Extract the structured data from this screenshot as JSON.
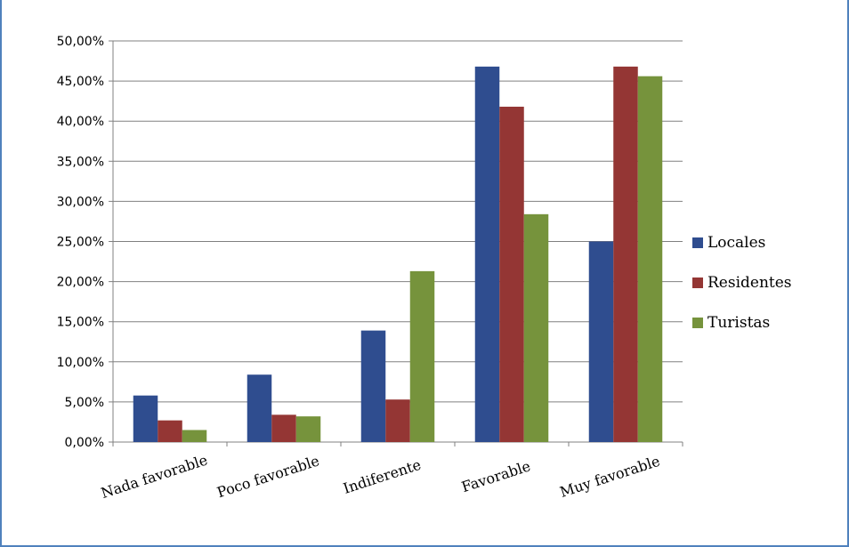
{
  "chart_data": {
    "type": "bar",
    "title": "",
    "xlabel": "",
    "ylabel": "",
    "categories": [
      "Nada favorable",
      "Poco favorable",
      "Indiferente",
      "Favorable",
      "Muy favorable"
    ],
    "series": [
      {
        "name": "Locales",
        "color": "#2f4d8f",
        "values": [
          5.8,
          8.4,
          13.9,
          46.8,
          25.0
        ]
      },
      {
        "name": "Residentes",
        "color": "#943634",
        "values": [
          2.7,
          3.4,
          5.3,
          41.8,
          46.8
        ]
      },
      {
        "name": "Turistas",
        "color": "#76933c",
        "values": [
          1.5,
          3.2,
          21.3,
          28.4,
          45.6
        ]
      }
    ],
    "yticks": [
      "0,00%",
      "5,00%",
      "10,00%",
      "15,00%",
      "20,00%",
      "25,00%",
      "30,00%",
      "35,00%",
      "40,00%",
      "45,00%",
      "50,00%"
    ],
    "ylim": [
      0,
      50
    ],
    "grid": true,
    "legend_position": "right"
  }
}
